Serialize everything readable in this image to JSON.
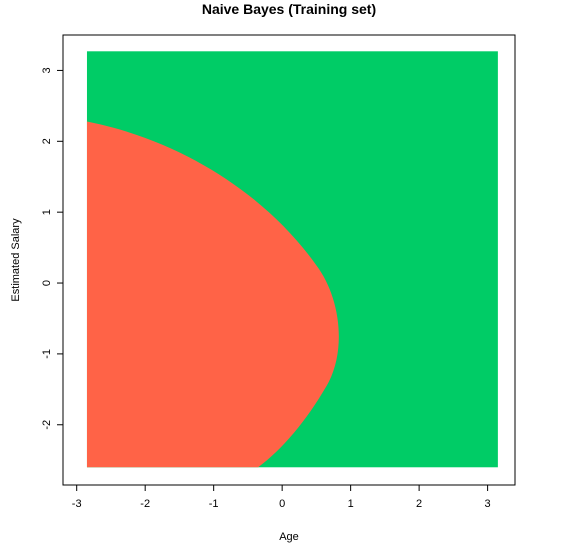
{
  "chart_data": {
    "type": "area",
    "title": "Naive Bayes (Training set)",
    "xlabel": "Age",
    "ylabel": "Estimated Salary",
    "xlim": [
      -3.2,
      3.4
    ],
    "ylim": [
      -2.85,
      3.5
    ],
    "xticks": [
      -3,
      -2,
      -1,
      0,
      1,
      2,
      3
    ],
    "yticks": [
      -2,
      -1,
      0,
      1,
      2,
      3
    ],
    "grid_extent": {
      "x": [
        -2.85,
        3.15
      ],
      "y": [
        -2.6,
        3.27
      ]
    },
    "grid": false,
    "legend": "none",
    "regions": [
      {
        "class": "0",
        "color": "#ff6347",
        "description": "left elliptical region"
      },
      {
        "class": "1",
        "color": "#00cc66",
        "description": "background"
      }
    ],
    "boundary": [
      {
        "x": -2.85,
        "y": 2.28
      },
      {
        "x": -2.0,
        "y": 1.98
      },
      {
        "x": -1.0,
        "y": 1.45
      },
      {
        "x": 0.0,
        "y": 0.65
      },
      {
        "x": 0.5,
        "y": 0.2
      },
      {
        "x": 0.85,
        "y": -0.65
      },
      {
        "x": 0.6,
        "y": -1.5
      },
      {
        "x": 0.0,
        "y": -2.2
      },
      {
        "x": -0.35,
        "y": -2.6
      }
    ]
  }
}
